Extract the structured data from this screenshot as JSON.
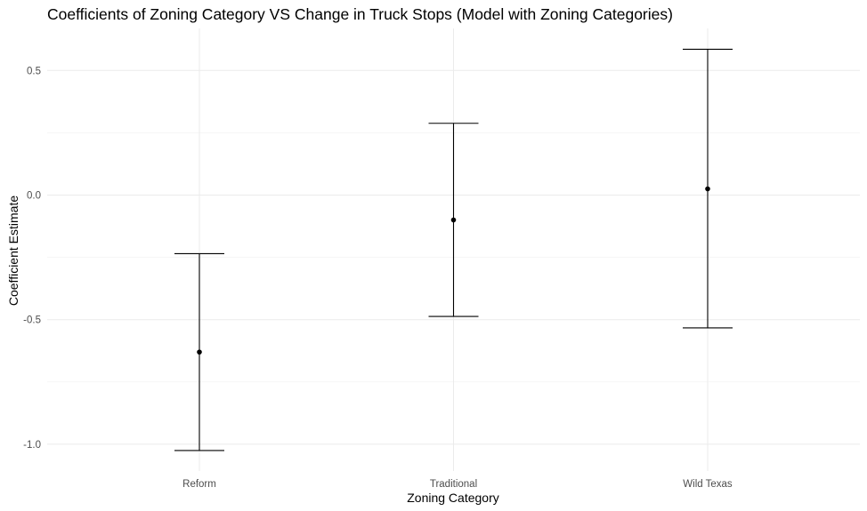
{
  "chart_data": {
    "type": "errorbar",
    "title": "Coefficients of Zoning Category VS Change in Truck Stops (Model with Zoning Categories)",
    "xlabel": "Zoning Category",
    "ylabel": "Coefficient Estimate",
    "categories": [
      "Reform",
      "Traditional",
      "Wild Texas"
    ],
    "estimates": [
      -0.63,
      -0.1,
      0.025
    ],
    "lower": [
      -1.025,
      -0.487,
      -0.533
    ],
    "upper": [
      -0.235,
      0.288,
      0.585
    ],
    "ylim": [
      -1.05,
      0.65
    ],
    "yticks": [
      -1.0,
      -0.5,
      0.0,
      0.5
    ],
    "ytick_labels": [
      "-1.0",
      "-0.5",
      "0.0",
      "0.5"
    ],
    "grid": true,
    "legend": "none"
  }
}
